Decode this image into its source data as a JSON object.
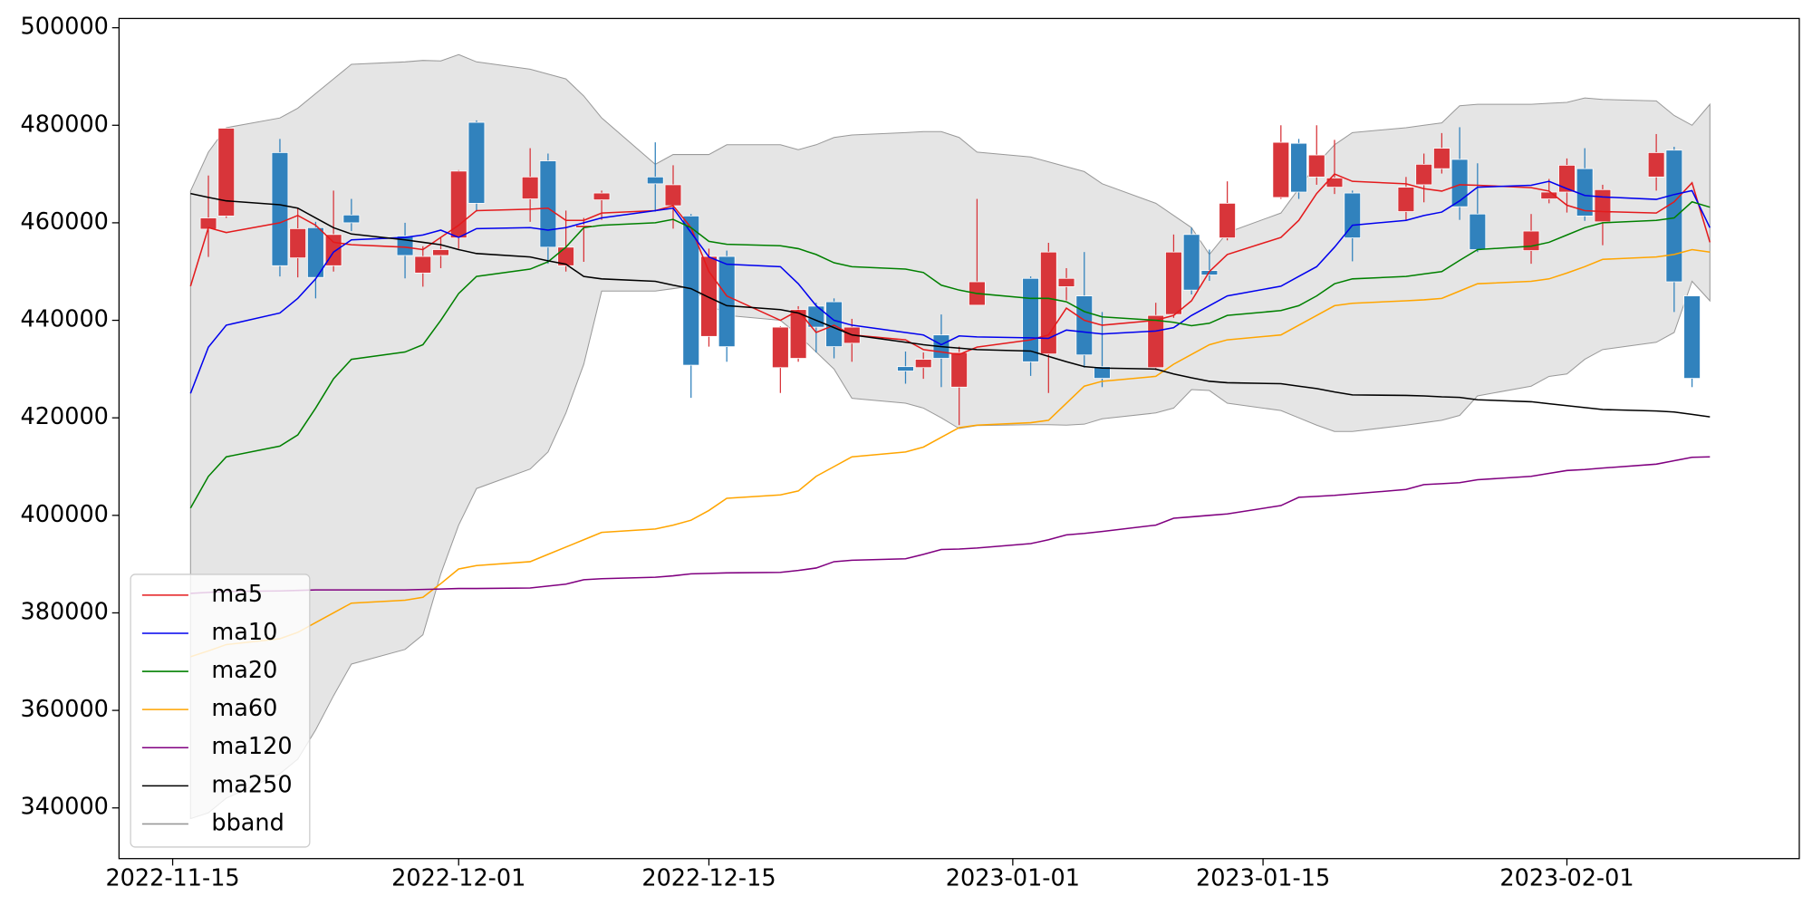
{
  "chart_data": {
    "type": "candlestick",
    "x": [
      "2022-11-16",
      "2022-11-17",
      "2022-11-18",
      "2022-11-21",
      "2022-11-22",
      "2022-11-23",
      "2022-11-24",
      "2022-11-25",
      "2022-11-28",
      "2022-11-29",
      "2022-11-30",
      "2022-12-01",
      "2022-12-02",
      "2022-12-05",
      "2022-12-06",
      "2022-12-07",
      "2022-12-08",
      "2022-12-09",
      "2022-12-12",
      "2022-12-13",
      "2022-12-14",
      "2022-12-15",
      "2022-12-16",
      "2022-12-19",
      "2022-12-20",
      "2022-12-21",
      "2022-12-22",
      "2022-12-23",
      "2022-12-26",
      "2022-12-27",
      "2022-12-28",
      "2022-12-29",
      "2022-12-30",
      "2023-01-02",
      "2023-01-03",
      "2023-01-04",
      "2023-01-05",
      "2023-01-06",
      "2023-01-09",
      "2023-01-10",
      "2023-01-11",
      "2023-01-12",
      "2023-01-13",
      "2023-01-16",
      "2023-01-17",
      "2023-01-18",
      "2023-01-19",
      "2023-01-20",
      "2023-01-23",
      "2023-01-24",
      "2023-01-25",
      "2023-01-26",
      "2023-01-27",
      "2023-01-30",
      "2023-01-31",
      "2023-02-01",
      "2023-02-02",
      "2023-02-03",
      "2023-02-06",
      "2023-02-07",
      "2023-02-08",
      "2023-02-09"
    ],
    "open": [
      null,
      458700,
      461400,
      474400,
      452800,
      459000,
      451200,
      461600,
      457300,
      449700,
      453300,
      456900,
      480600,
      464900,
      472700,
      451200,
      459000,
      464700,
      469400,
      463500,
      461400,
      436700,
      453100,
      430300,
      432200,
      442900,
      443800,
      435300,
      430500,
      430300,
      437000,
      426300,
      443100,
      448600,
      433100,
      446900,
      445000,
      430500,
      430300,
      441200,
      457600,
      450200,
      456900,
      465200,
      476300,
      469400,
      467300,
      466100,
      462300,
      467800,
      471100,
      473000,
      461800,
      454300,
      464900,
      466300,
      471100,
      460200,
      469400,
      474900,
      445000,
      null
    ],
    "high": [
      null,
      469700,
      479500,
      477200,
      463000,
      460200,
      466600,
      464900,
      460000,
      455200,
      457100,
      470800,
      481000,
      475300,
      474200,
      462500,
      461000,
      466600,
      476500,
      471800,
      461800,
      454700,
      454300,
      438800,
      442900,
      443600,
      444500,
      440300,
      433600,
      433400,
      441200,
      434600,
      464900,
      449000,
      455900,
      450700,
      454000,
      441700,
      443600,
      457600,
      459000,
      454500,
      468500,
      480000,
      477200,
      480000,
      477000,
      466600,
      469400,
      474200,
      478400,
      479600,
      472200,
      461800,
      469000,
      473200,
      475300,
      467800,
      478200,
      475600,
      445000,
      null
    ],
    "low": [
      null,
      453000,
      461000,
      449000,
      448800,
      444500,
      450000,
      458300,
      448600,
      446900,
      450700,
      454700,
      462300,
      460200,
      451600,
      450000,
      452000,
      460600,
      462300,
      458800,
      424100,
      434600,
      431500,
      425100,
      431500,
      433400,
      432200,
      431500,
      427000,
      428000,
      426300,
      418500,
      443100,
      428600,
      425100,
      444100,
      430300,
      426300,
      429800,
      440500,
      445300,
      448100,
      456400,
      464900,
      464900,
      467800,
      465900,
      452100,
      460600,
      464200,
      470100,
      460600,
      454000,
      451600,
      464000,
      462100,
      460400,
      455400,
      466600,
      441700,
      426300,
      null
    ],
    "close": [
      null,
      461000,
      479400,
      451200,
      458800,
      448800,
      457600,
      460000,
      453300,
      453100,
      454500,
      470600,
      464000,
      469400,
      455000,
      455000,
      459500,
      466100,
      468000,
      467800,
      430800,
      453100,
      434600,
      438600,
      442200,
      438600,
      434600,
      438600,
      429600,
      432000,
      432200,
      433400,
      447900,
      431500,
      454000,
      448600,
      432900,
      428100,
      441000,
      454000,
      446200,
      449300,
      464000,
      476500,
      466300,
      473900,
      469200,
      456900,
      467300,
      472000,
      475300,
      463300,
      454500,
      458300,
      466300,
      471800,
      461400,
      466800,
      474400,
      447900,
      428100,
      null
    ],
    "up_color": "#d8353a",
    "down_color": "#3182bd",
    "series": [
      {
        "name": "ma5",
        "color": "#e41a1c",
        "values": [
          447000,
          459000,
          458000,
          460000,
          461500,
          459500,
          456000,
          455500,
          455000,
          454500,
          457000,
          459500,
          462500,
          462800,
          463000,
          460500,
          460500,
          462000,
          462500,
          463500,
          459000,
          450000,
          445000,
          440000,
          442000,
          437500,
          439000,
          437000,
          436000,
          434000,
          433500,
          433000,
          434500,
          436000,
          437000,
          442500,
          440000,
          439000,
          440000,
          441000,
          444000,
          450000,
          453500,
          457000,
          460500,
          466000,
          470000,
          468500,
          468000,
          467000,
          466500,
          467800,
          467700,
          467200,
          466500,
          463600,
          462500,
          462300,
          462000,
          464300,
          468200,
          456000
        ]
      },
      {
        "name": "ma10",
        "color": "#0000ee",
        "values": [
          425000,
          434500,
          439000,
          441500,
          444500,
          448500,
          454000,
          456500,
          457000,
          457500,
          458500,
          457000,
          458800,
          459000,
          458500,
          459000,
          460000,
          461000,
          462500,
          463000,
          458000,
          453000,
          451500,
          451000,
          447500,
          443000,
          440000,
          439000,
          437500,
          437000,
          435000,
          436800,
          436600,
          436400,
          436300,
          438000,
          437600,
          437200,
          437800,
          438500,
          441000,
          443000,
          445000,
          447000,
          449000,
          451000,
          455000,
          459500,
          460500,
          461500,
          462200,
          464500,
          467300,
          467700,
          468500,
          467000,
          465600,
          465300,
          464800,
          465800,
          466600,
          459000
        ]
      },
      {
        "name": "ma20",
        "color": "#008000",
        "values": [
          401500,
          408000,
          412000,
          414200,
          416500,
          422000,
          428000,
          432000,
          433500,
          435000,
          440000,
          445500,
          449000,
          450500,
          452000,
          455000,
          459000,
          459500,
          460000,
          460700,
          459000,
          456200,
          455600,
          455300,
          454700,
          453500,
          451800,
          451000,
          450500,
          449800,
          447200,
          446200,
          445500,
          444500,
          444500,
          443800,
          441800,
          440700,
          440000,
          439600,
          438900,
          439400,
          441000,
          442000,
          443000,
          445000,
          447500,
          448500,
          449000,
          449500,
          450000,
          452300,
          454500,
          455200,
          456000,
          457500,
          459000,
          460000,
          460500,
          461000,
          464300,
          463200
        ]
      },
      {
        "name": "ma60",
        "color": "#ffa500",
        "values": [
          371000,
          372200,
          373500,
          374700,
          376000,
          378000,
          380000,
          382000,
          382600,
          383200,
          386000,
          389000,
          389700,
          390500,
          392000,
          393500,
          395000,
          396500,
          397200,
          398000,
          399000,
          401000,
          403500,
          404200,
          405000,
          408000,
          410000,
          412000,
          413000,
          414000,
          416000,
          418000,
          418500,
          419000,
          419500,
          423000,
          426500,
          427500,
          428500,
          431000,
          433000,
          435000,
          436000,
          437000,
          439000,
          441000,
          443000,
          443500,
          444000,
          444200,
          444500,
          446000,
          447500,
          448000,
          448500,
          449700,
          451000,
          452500,
          453000,
          453500,
          454500,
          454000
        ]
      },
      {
        "name": "ma120",
        "color": "#800080",
        "values": [
          384000,
          384200,
          384400,
          384500,
          384600,
          384700,
          384700,
          384700,
          384700,
          384800,
          384900,
          385000,
          385000,
          385100,
          385500,
          385900,
          386800,
          387000,
          387300,
          387600,
          388000,
          388100,
          388200,
          388300,
          388700,
          389200,
          390500,
          390800,
          391100,
          392000,
          393000,
          393100,
          393300,
          394200,
          395000,
          396000,
          396300,
          396700,
          398000,
          399400,
          399700,
          400000,
          400300,
          402000,
          403700,
          403900,
          404100,
          404400,
          405300,
          406300,
          406500,
          406700,
          407300,
          408000,
          408600,
          409200,
          409400,
          409700,
          410500,
          411200,
          411900,
          412000
        ]
      },
      {
        "name": "ma250",
        "color": "#000000",
        "values": [
          466000,
          465200,
          464500,
          463700,
          463000,
          461000,
          459000,
          457700,
          456500,
          456000,
          455500,
          454500,
          453700,
          453000,
          452200,
          451500,
          449000,
          448500,
          448000,
          447200,
          446500,
          444700,
          443000,
          442200,
          441500,
          440000,
          438500,
          437000,
          435500,
          435000,
          434600,
          434300,
          434000,
          433700,
          432600,
          431500,
          430500,
          430200,
          430000,
          429000,
          428200,
          427500,
          427200,
          427000,
          426500,
          426000,
          425300,
          424700,
          424600,
          424500,
          424300,
          424200,
          423700,
          423300,
          422900,
          422500,
          422100,
          421700,
          421400,
          421200,
          420700,
          420200
        ]
      }
    ],
    "bband": {
      "name": "bband",
      "color": "#999999",
      "fill": "#e5e5e5",
      "upper": [
        466500,
        474500,
        479500,
        481500,
        483500,
        486500,
        489500,
        492500,
        493000,
        493300,
        493200,
        494500,
        493000,
        491500,
        490500,
        489500,
        486000,
        481500,
        472000,
        474000,
        474000,
        474000,
        476000,
        476000,
        475000,
        476000,
        477500,
        478000,
        478500,
        478700,
        478700,
        477500,
        474500,
        473500,
        472500,
        471500,
        470500,
        468000,
        464000,
        461500,
        459000,
        453500,
        458000,
        462000,
        467000,
        472000,
        476000,
        478500,
        479500,
        480000,
        480500,
        484000,
        484300,
        484300,
        484500,
        484700,
        485600,
        485300,
        485000,
        482000,
        480000,
        484300
      ],
      "lower": [
        337800,
        339000,
        342000,
        347000,
        350000,
        356000,
        363000,
        369500,
        372500,
        375500,
        388000,
        398000,
        405500,
        409500,
        413000,
        421000,
        431000,
        446000,
        446000,
        446500,
        447000,
        443500,
        441000,
        440000,
        437000,
        433500,
        430000,
        424000,
        423000,
        422000,
        420000,
        417800,
        418400,
        418600,
        418600,
        418500,
        418700,
        419800,
        421000,
        422000,
        425800,
        425600,
        423000,
        421500,
        420000,
        418500,
        417200,
        417200,
        418500,
        419000,
        419500,
        420500,
        424500,
        426500,
        428500,
        429000,
        432000,
        434000,
        435500,
        437500,
        448000,
        444000
      ]
    },
    "xlim": [
      "2022-11-12",
      "2023-02-14"
    ],
    "xticks": [
      "2022-11-15",
      "2022-12-01",
      "2022-12-15",
      "2023-01-01",
      "2023-01-15",
      "2023-02-01"
    ],
    "ylim": [
      329600,
      501900
    ],
    "yticks": [
      340000,
      360000,
      380000,
      400000,
      420000,
      440000,
      460000,
      480000,
      500000
    ],
    "legend": "lower left"
  }
}
